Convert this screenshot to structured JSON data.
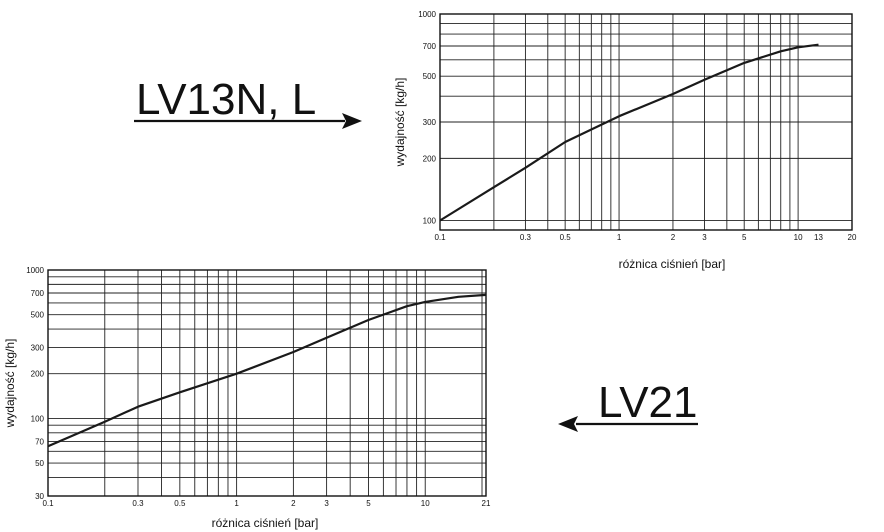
{
  "callouts": [
    {
      "text": "LV13N, L",
      "arrow": "right"
    },
    {
      "text": "LV21",
      "arrow": "left"
    }
  ],
  "chart_data": [
    {
      "type": "line",
      "name": "LV13N, L",
      "xlabel": "różnica ciśnień [bar]",
      "ylabel": "wydajność [kg/h]",
      "xscale": "log",
      "yscale": "log",
      "xlim": [
        0.1,
        20
      ],
      "ylim": [
        90,
        1000
      ],
      "x_ticks": [
        "0.1",
        "0.3",
        "0.5",
        "1",
        "2",
        "3",
        "5",
        "10",
        "13",
        "20"
      ],
      "x_tick_values": [
        0.1,
        0.3,
        0.5,
        1,
        2,
        3,
        5,
        10,
        13,
        20
      ],
      "y_ticks": [
        "100",
        "200",
        "300",
        "500",
        "700",
        "1000"
      ],
      "y_tick_values": [
        100,
        200,
        300,
        500,
        700,
        1000
      ],
      "color": "#1a1a1a",
      "series": [
        {
          "x": [
            0.1,
            0.2,
            0.3,
            0.5,
            1,
            2,
            3,
            5,
            8,
            10,
            13
          ],
          "y": [
            100,
            145,
            180,
            240,
            320,
            410,
            480,
            580,
            660,
            690,
            710
          ]
        }
      ]
    },
    {
      "type": "line",
      "name": "LV21",
      "xlabel": "różnica ciśnień [bar]",
      "ylabel": "wydajność [kg/h]",
      "xscale": "log",
      "yscale": "log",
      "xlim": [
        0.1,
        21
      ],
      "ylim": [
        30,
        1000
      ],
      "x_ticks": [
        "0.1",
        "0.3",
        "0.5",
        "1",
        "2",
        "3",
        "5",
        "10",
        "21"
      ],
      "x_tick_values": [
        0.1,
        0.3,
        0.5,
        1,
        2,
        3,
        5,
        10,
        21
      ],
      "y_ticks": [
        "30",
        "50",
        "70",
        "100",
        "200",
        "300",
        "500",
        "700",
        "1000"
      ],
      "y_tick_values": [
        30,
        50,
        70,
        100,
        200,
        300,
        500,
        700,
        1000
      ],
      "color": "#1a1a1a",
      "series": [
        {
          "x": [
            0.1,
            0.2,
            0.3,
            0.5,
            1,
            2,
            3,
            5,
            8,
            10,
            15,
            21
          ],
          "y": [
            65,
            95,
            120,
            150,
            200,
            280,
            350,
            460,
            570,
            610,
            660,
            680
          ]
        }
      ]
    }
  ]
}
